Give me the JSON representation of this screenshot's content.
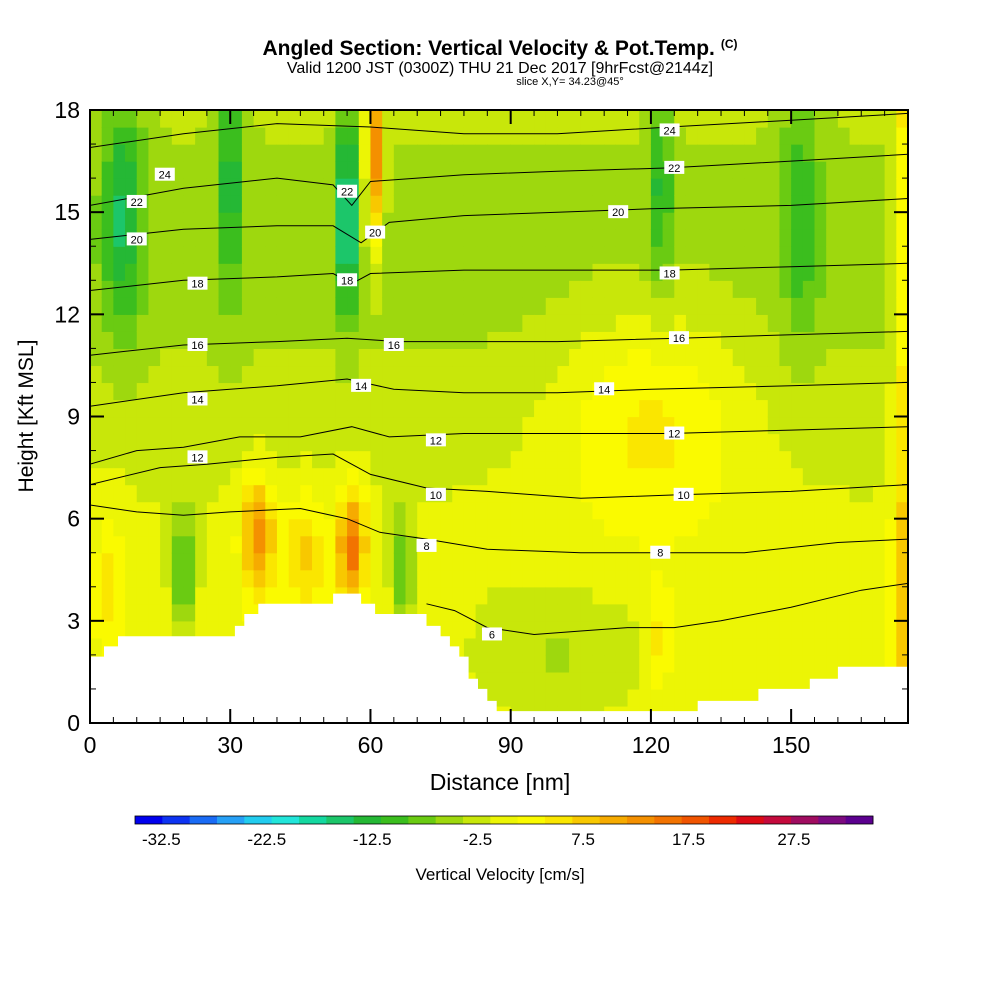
{
  "chart_data": {
    "type": "heatmap",
    "title": "Angled Section: Vertical Velocity & Pot.Temp.",
    "title_mark": "(C)",
    "subtitle": "Valid 1200 JST (0300Z) THU 21 Dec 2017 [9hrFcst@2144z]",
    "subtitle2": "slice X,Y= 34.23@45°",
    "xlabel": "Distance [nm]",
    "ylabel": "Height [Kft MSL]",
    "xlim": [
      0,
      175
    ],
    "ylim": [
      0,
      18
    ],
    "xticks": [
      0,
      30,
      60,
      90,
      120,
      150
    ],
    "yticks": [
      0,
      3,
      6,
      9,
      12,
      15,
      18
    ],
    "colorbar": {
      "label": "Vertical Velocity [cm/s]",
      "tick_labels": [
        "-32.5",
        "-22.5",
        "-12.5",
        "-2.5",
        "7.5",
        "17.5",
        "27.5"
      ],
      "tick_values": [
        -32.5,
        -22.5,
        -12.5,
        -2.5,
        7.5,
        17.5,
        27.5
      ],
      "bins": [
        -35,
        35
      ],
      "colors": [
        "#0000ee",
        "#0d33f2",
        "#1a6bf5",
        "#26a0f6",
        "#22ccef",
        "#22e5da",
        "#14d8a0",
        "#1cc66a",
        "#25b835",
        "#3bbe1e",
        "#6acb12",
        "#9ed80e",
        "#c8e70a",
        "#ecf505",
        "#fafa00",
        "#fae600",
        "#f8c800",
        "#f6ab00",
        "#f49000",
        "#f27300",
        "#f05400",
        "#ed2a00",
        "#dc0a14",
        "#c40a3c",
        "#a00c60",
        "#7c0a80",
        "#5c008f"
      ]
    },
    "terrain": [
      [
        0,
        1.95
      ],
      [
        3,
        1.95
      ],
      [
        3,
        2.25
      ],
      [
        6,
        2.25
      ],
      [
        6,
        2.55
      ],
      [
        31,
        2.55
      ],
      [
        31,
        2.85
      ],
      [
        33,
        2.85
      ],
      [
        33,
        3.2
      ],
      [
        36,
        3.2
      ],
      [
        36,
        3.5
      ],
      [
        52,
        3.5
      ],
      [
        52,
        3.8
      ],
      [
        58,
        3.8
      ],
      [
        58,
        3.5
      ],
      [
        61,
        3.5
      ],
      [
        61,
        3.2
      ],
      [
        72,
        3.2
      ],
      [
        72,
        2.85
      ],
      [
        75,
        2.85
      ],
      [
        75,
        2.55
      ],
      [
        77,
        2.55
      ],
      [
        77,
        2.25
      ],
      [
        79,
        2.25
      ],
      [
        79,
        1.95
      ],
      [
        81,
        1.95
      ],
      [
        81,
        1.3
      ],
      [
        83,
        1.3
      ],
      [
        83,
        1.0
      ],
      [
        85,
        1.0
      ],
      [
        85,
        0.65
      ],
      [
        87,
        0.65
      ],
      [
        87,
        0.35
      ],
      [
        130,
        0.35
      ],
      [
        130,
        0.65
      ],
      [
        143,
        0.65
      ],
      [
        143,
        1.0
      ],
      [
        154,
        1.0
      ],
      [
        154,
        1.3
      ],
      [
        160,
        1.3
      ],
      [
        160,
        1.65
      ],
      [
        175,
        1.65
      ]
    ],
    "series": [
      {
        "name": "pot_temp",
        "label": "24",
        "value": 24,
        "points": [
          [
            0,
            16.9
          ],
          [
            20,
            17.3
          ],
          [
            40,
            17.6
          ],
          [
            60,
            17.5
          ],
          [
            80,
            17.3
          ],
          [
            100,
            17.3
          ],
          [
            124,
            17.5
          ],
          [
            150,
            17.7
          ],
          [
            175,
            17.9
          ]
        ],
        "label_at": [
          [
            16,
            16.1
          ],
          [
            124,
            17.4
          ]
        ]
      },
      {
        "name": "pot_temp",
        "label": "22",
        "value": 22,
        "points": [
          [
            0,
            15.2
          ],
          [
            20,
            15.7
          ],
          [
            40,
            16.0
          ],
          [
            52,
            15.8
          ],
          [
            56,
            15.2
          ],
          [
            60,
            15.9
          ],
          [
            80,
            16.1
          ],
          [
            100,
            16.2
          ],
          [
            124,
            16.3
          ],
          [
            150,
            16.5
          ],
          [
            175,
            16.7
          ]
        ],
        "label_at": [
          [
            10,
            15.3
          ],
          [
            55,
            15.6
          ],
          [
            125,
            16.3
          ]
        ]
      },
      {
        "name": "pot_temp",
        "label": "20",
        "value": 20,
        "points": [
          [
            0,
            14.2
          ],
          [
            20,
            14.5
          ],
          [
            40,
            14.6
          ],
          [
            52,
            14.6
          ],
          [
            58,
            14.1
          ],
          [
            64,
            14.7
          ],
          [
            80,
            14.9
          ],
          [
            100,
            15.0
          ],
          [
            120,
            15.1
          ],
          [
            150,
            15.2
          ],
          [
            175,
            15.4
          ]
        ],
        "label_at": [
          [
            10,
            14.2
          ],
          [
            61,
            14.4
          ],
          [
            113,
            15.0
          ]
        ]
      },
      {
        "name": "pot_temp",
        "label": "18",
        "value": 18,
        "points": [
          [
            0,
            12.7
          ],
          [
            20,
            13.0
          ],
          [
            40,
            13.1
          ],
          [
            52,
            13.2
          ],
          [
            56,
            12.9
          ],
          [
            60,
            13.2
          ],
          [
            80,
            13.3
          ],
          [
            100,
            13.3
          ],
          [
            124,
            13.3
          ],
          [
            150,
            13.4
          ],
          [
            175,
            13.5
          ]
        ],
        "label_at": [
          [
            23,
            12.9
          ],
          [
            55,
            13.0
          ],
          [
            124,
            13.2
          ]
        ]
      },
      {
        "name": "pot_temp",
        "label": "16",
        "value": 16,
        "points": [
          [
            0,
            10.8
          ],
          [
            20,
            11.1
          ],
          [
            40,
            11.2
          ],
          [
            55,
            11.3
          ],
          [
            66,
            11.2
          ],
          [
            80,
            11.2
          ],
          [
            100,
            11.2
          ],
          [
            126,
            11.3
          ],
          [
            150,
            11.4
          ],
          [
            175,
            11.5
          ]
        ],
        "label_at": [
          [
            23,
            11.1
          ],
          [
            65,
            11.1
          ],
          [
            126,
            11.3
          ]
        ]
      },
      {
        "name": "pot_temp",
        "label": "14",
        "value": 14,
        "points": [
          [
            0,
            9.3
          ],
          [
            20,
            9.7
          ],
          [
            40,
            9.9
          ],
          [
            55,
            10.1
          ],
          [
            65,
            9.8
          ],
          [
            80,
            9.7
          ],
          [
            100,
            9.7
          ],
          [
            120,
            9.8
          ],
          [
            150,
            9.9
          ],
          [
            175,
            10.0
          ]
        ],
        "label_at": [
          [
            23,
            9.5
          ],
          [
            58,
            9.9
          ],
          [
            110,
            9.8
          ]
        ]
      },
      {
        "name": "pot_temp",
        "label": "12",
        "value": 12,
        "points": [
          [
            0,
            7.6
          ],
          [
            10,
            8.0
          ],
          [
            20,
            8.1
          ],
          [
            32,
            8.4
          ],
          [
            45,
            8.4
          ],
          [
            56,
            8.7
          ],
          [
            64,
            8.4
          ],
          [
            80,
            8.5
          ],
          [
            100,
            8.5
          ],
          [
            124,
            8.5
          ],
          [
            150,
            8.6
          ],
          [
            175,
            8.7
          ]
        ],
        "label_at": [
          [
            23,
            7.8
          ],
          [
            74,
            8.3
          ],
          [
            125,
            8.5
          ]
        ]
      },
      {
        "name": "pot_temp",
        "label": "10",
        "value": 10,
        "points": [
          [
            0,
            7.0
          ],
          [
            15,
            7.5
          ],
          [
            25,
            7.6
          ],
          [
            40,
            7.8
          ],
          [
            52,
            7.9
          ],
          [
            60,
            7.3
          ],
          [
            72,
            6.9
          ],
          [
            85,
            6.8
          ],
          [
            105,
            6.6
          ],
          [
            126,
            6.7
          ],
          [
            150,
            6.8
          ],
          [
            175,
            7.0
          ]
        ],
        "label_at": [
          [
            74,
            6.7
          ],
          [
            127,
            6.7
          ]
        ]
      },
      {
        "name": "pot_temp",
        "label": "8",
        "value": 8,
        "points": [
          [
            0,
            6.4
          ],
          [
            10,
            6.2
          ],
          [
            20,
            6.1
          ],
          [
            30,
            6.2
          ],
          [
            45,
            6.3
          ],
          [
            55,
            6.0
          ],
          [
            62,
            5.6
          ],
          [
            72,
            5.4
          ],
          [
            85,
            5.1
          ],
          [
            105,
            5.0
          ],
          [
            122,
            5.0
          ],
          [
            140,
            5.0
          ],
          [
            160,
            5.3
          ],
          [
            175,
            5.4
          ]
        ],
        "label_at": [
          [
            72,
            5.2
          ],
          [
            122,
            5.0
          ]
        ]
      },
      {
        "name": "pot_temp",
        "label": "6",
        "value": 6,
        "points": [
          [
            72,
            3.5
          ],
          [
            78,
            3.3
          ],
          [
            85,
            2.8
          ],
          [
            95,
            2.6
          ],
          [
            105,
            2.7
          ],
          [
            115,
            2.8
          ],
          [
            125,
            2.8
          ],
          [
            135,
            3.0
          ],
          [
            150,
            3.4
          ],
          [
            165,
            3.9
          ],
          [
            175,
            4.1
          ]
        ],
        "label_at": [
          [
            86,
            2.6
          ]
        ]
      }
    ]
  }
}
